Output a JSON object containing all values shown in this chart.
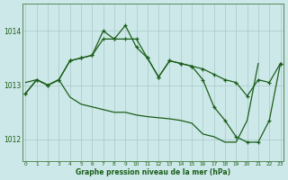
{
  "x": [
    0,
    1,
    2,
    3,
    4,
    5,
    6,
    7,
    8,
    9,
    10,
    11,
    12,
    13,
    14,
    15,
    16,
    17,
    18,
    19,
    20,
    21,
    22,
    23
  ],
  "line_upper": [
    1012.85,
    1013.1,
    1013.0,
    1013.1,
    1013.45,
    1013.5,
    1013.55,
    1013.85,
    1013.85,
    1013.85,
    1013.85,
    1013.5,
    1013.15,
    1013.45,
    1013.4,
    1013.35,
    1013.3,
    1013.2,
    1013.1,
    1013.05,
    1012.8,
    1013.1,
    1013.05,
    1013.4
  ],
  "line_peak": [
    1012.85,
    1013.1,
    1013.0,
    1013.1,
    1013.45,
    1013.5,
    1013.55,
    1014.0,
    1013.85,
    1014.1,
    1013.7,
    1013.5,
    1013.15,
    1013.45,
    1013.4,
    1013.35,
    1013.1,
    1012.6,
    1012.35,
    1012.05,
    1011.95,
    1011.95,
    1012.35,
    1013.4
  ],
  "line_low": [
    1013.05,
    1013.1,
    1013.0,
    1013.1,
    1012.78,
    1012.65,
    1012.6,
    1012.55,
    1012.5,
    1012.5,
    1012.45,
    1012.42,
    1012.4,
    1012.38,
    1012.35,
    1012.3,
    1012.1,
    1012.05,
    1011.95,
    1011.95,
    1012.35,
    1013.4,
    null,
    null
  ],
  "background_color": "#cde8e8",
  "line_color": "#1a5e1a",
  "grid_color": "#a8c8c8",
  "ylabel_ticks": [
    1012,
    1013,
    1014
  ],
  "ylim": [
    1011.6,
    1014.5
  ],
  "xlim": [
    -0.3,
    23.3
  ],
  "xlabel": "Graphe pression niveau de la mer (hPa)"
}
